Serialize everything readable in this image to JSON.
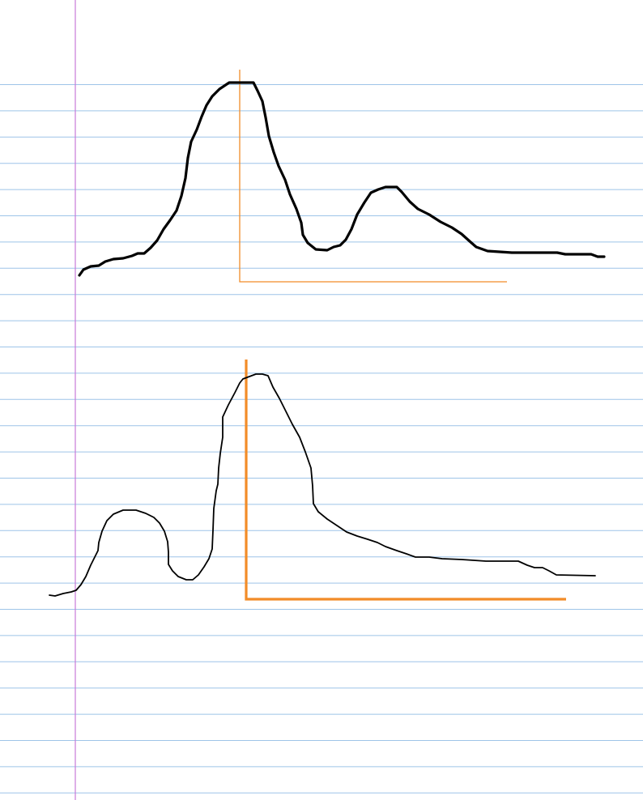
{
  "page": {
    "background": "#ffffff",
    "rule_color": "#9ec4e8",
    "margin_color": "#c77ad9"
  },
  "sketches": [
    {
      "curve_color": "#000000",
      "axis_color": "#f28c28"
    },
    {
      "curve_color": "#000000",
      "axis_color": "#f28c28"
    }
  ]
}
